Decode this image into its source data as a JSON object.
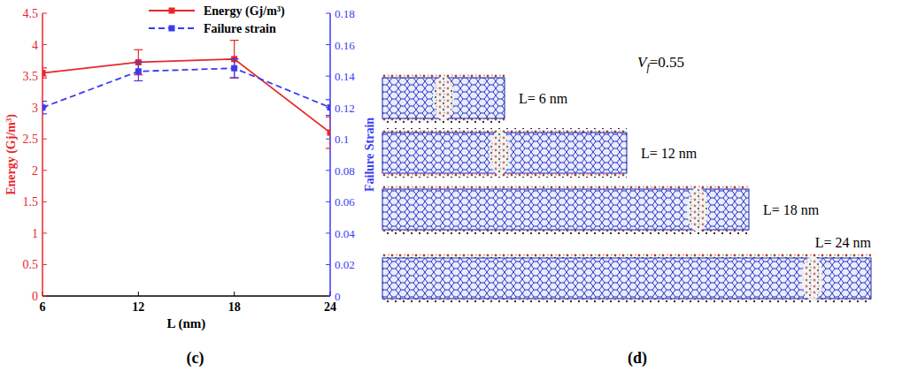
{
  "chart_data": {
    "type": "line",
    "panel_label": "(c)",
    "x_label": "L (nm)",
    "y_label": "Energy (Gj/m³)",
    "y2_label": "Failure Strain",
    "x": [
      6,
      12,
      18,
      24
    ],
    "xlim": [
      6,
      24
    ],
    "xticks": [
      6,
      12,
      18,
      24
    ],
    "ylim": [
      0,
      4.5
    ],
    "yticks": [
      0,
      0.5,
      1,
      1.5,
      2,
      2.5,
      3,
      3.5,
      4,
      4.5
    ],
    "y2lim": [
      0,
      0.18
    ],
    "y2ticks": [
      0,
      0.02,
      0.04,
      0.06,
      0.08,
      0.1,
      0.12,
      0.14,
      0.16,
      0.18
    ],
    "legend": "top",
    "grid": false,
    "series": [
      {
        "name": "Energy (Gj/m³)",
        "color": "#e8262a",
        "marker": "square",
        "line_style": "solid",
        "values": [
          3.55,
          3.72,
          3.77,
          2.6
        ],
        "errors": [
          0.08,
          0.2,
          0.3,
          0.25
        ]
      },
      {
        "name": "Failure strain",
        "color": "#3a3af2",
        "marker": "square",
        "line_style": "dashed",
        "axis": "y2",
        "values": [
          0.12,
          0.143,
          0.145,
          0.12
        ],
        "errors": [
          0.004,
          0.006,
          0.006,
          0.005
        ]
      }
    ]
  },
  "panel_d": {
    "panel_label": "(d)",
    "title": {
      "main": "V",
      "sub": "f",
      "rest": "=0.55"
    },
    "models": [
      {
        "label": "L= 6 nm",
        "length": 6
      },
      {
        "label": "L= 12 nm",
        "length": 12
      },
      {
        "label": "L= 18 nm",
        "length": 18
      },
      {
        "label": "L= 24 nm",
        "length": 24
      }
    ]
  }
}
